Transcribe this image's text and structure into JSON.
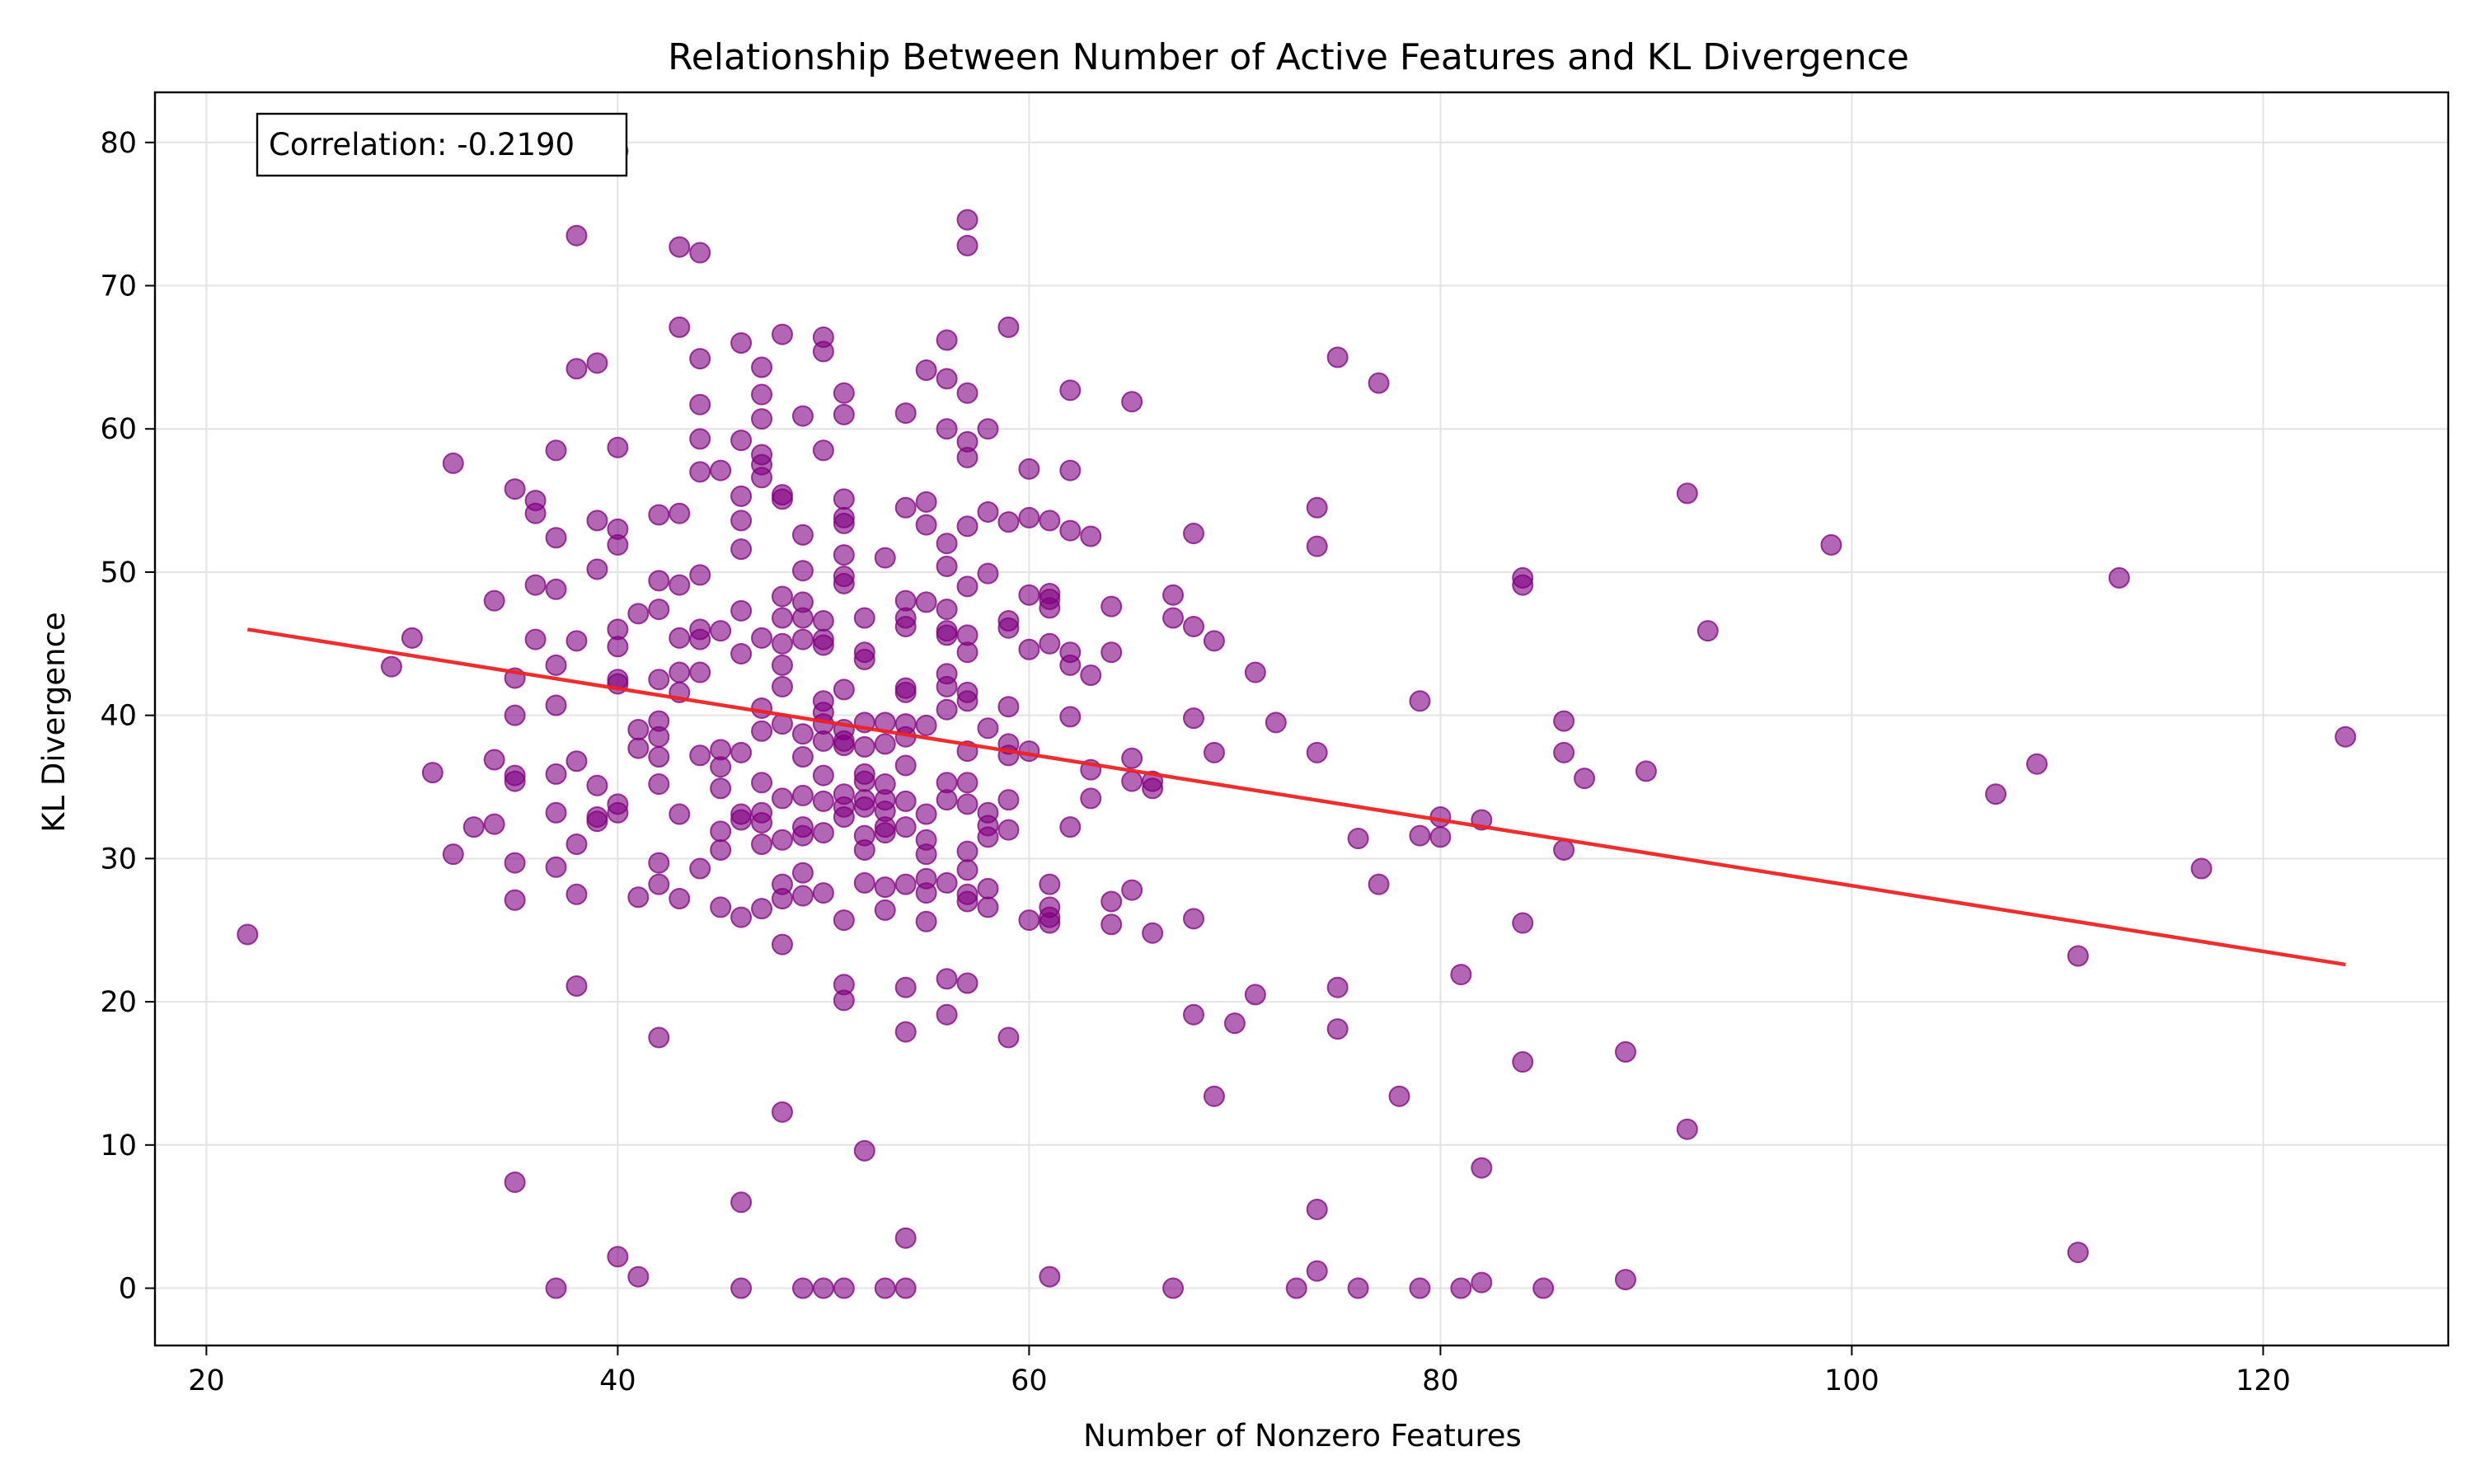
{
  "chart_data": {
    "type": "scatter",
    "title": "Relationship Between Number of Active Features and KL Divergence",
    "xlabel": "Number of Nonzero Features",
    "ylabel": "KL Divergence",
    "xlim": [
      17.5,
      129
    ],
    "ylim": [
      -4,
      83.5
    ],
    "xticks": [
      20,
      40,
      60,
      80,
      100,
      120
    ],
    "yticks": [
      0,
      10,
      20,
      30,
      40,
      50,
      60,
      70,
      80
    ],
    "grid": true,
    "annotation": "Correlation: -0.2190",
    "point_color": "#800080",
    "trend_color": "#ee2222",
    "trendline": {
      "x": [
        22,
        124
      ],
      "y": [
        46.0,
        22.6
      ]
    },
    "points": [
      [
        22,
        24.7
      ],
      [
        29,
        43.4
      ],
      [
        30,
        45.4
      ],
      [
        31,
        36.0
      ],
      [
        32,
        57.6
      ],
      [
        32,
        30.3
      ],
      [
        33,
        32.2
      ],
      [
        34,
        48.0
      ],
      [
        34,
        36.9
      ],
      [
        34,
        32.4
      ],
      [
        35,
        55.8
      ],
      [
        35,
        42.6
      ],
      [
        35,
        40.0
      ],
      [
        35,
        35.8
      ],
      [
        35,
        35.4
      ],
      [
        35,
        29.7
      ],
      [
        35,
        27.1
      ],
      [
        35,
        7.4
      ],
      [
        36,
        55.0
      ],
      [
        36,
        54.1
      ],
      [
        36,
        49.1
      ],
      [
        36,
        45.3
      ],
      [
        37,
        58.5
      ],
      [
        37,
        52.4
      ],
      [
        37,
        48.8
      ],
      [
        37,
        43.5
      ],
      [
        37,
        40.7
      ],
      [
        37,
        35.9
      ],
      [
        37,
        33.2
      ],
      [
        37,
        29.4
      ],
      [
        37,
        0
      ],
      [
        38,
        73.5
      ],
      [
        38,
        64.2
      ],
      [
        38,
        45.2
      ],
      [
        38,
        36.8
      ],
      [
        38,
        31.0
      ],
      [
        38,
        27.5
      ],
      [
        38,
        21.1
      ],
      [
        39,
        64.6
      ],
      [
        39,
        53.6
      ],
      [
        39,
        50.2
      ],
      [
        39,
        35.1
      ],
      [
        39,
        32.9
      ],
      [
        39,
        32.6
      ],
      [
        40,
        79.4
      ],
      [
        40,
        58.7
      ],
      [
        40,
        53.0
      ],
      [
        40,
        51.9
      ],
      [
        40,
        46.0
      ],
      [
        40,
        44.8
      ],
      [
        40,
        42.5
      ],
      [
        40,
        42.2
      ],
      [
        40,
        33.8
      ],
      [
        40,
        33.2
      ],
      [
        40,
        2.2
      ],
      [
        41,
        47.1
      ],
      [
        41,
        39.0
      ],
      [
        41,
        37.7
      ],
      [
        41,
        27.3
      ],
      [
        41,
        0.8
      ],
      [
        42,
        54.0
      ],
      [
        42,
        49.4
      ],
      [
        42,
        47.4
      ],
      [
        42,
        42.5
      ],
      [
        42,
        39.6
      ],
      [
        42,
        38.5
      ],
      [
        42,
        37.1
      ],
      [
        42,
        35.2
      ],
      [
        42,
        29.7
      ],
      [
        42,
        28.2
      ],
      [
        42,
        17.5
      ],
      [
        43,
        72.7
      ],
      [
        43,
        67.1
      ],
      [
        43,
        54.1
      ],
      [
        43,
        49.1
      ],
      [
        43,
        45.4
      ],
      [
        43,
        43.0
      ],
      [
        43,
        41.6
      ],
      [
        43,
        33.1
      ],
      [
        43,
        27.2
      ],
      [
        44,
        72.3
      ],
      [
        44,
        64.9
      ],
      [
        44,
        61.7
      ],
      [
        44,
        59.3
      ],
      [
        44,
        57.0
      ],
      [
        44,
        49.8
      ],
      [
        44,
        46.0
      ],
      [
        44,
        45.3
      ],
      [
        44,
        43.0
      ],
      [
        44,
        37.2
      ],
      [
        44,
        29.3
      ],
      [
        45,
        57.1
      ],
      [
        45,
        45.9
      ],
      [
        45,
        37.6
      ],
      [
        45,
        36.4
      ],
      [
        45,
        34.9
      ],
      [
        45,
        31.9
      ],
      [
        45,
        30.6
      ],
      [
        45,
        26.6
      ],
      [
        46,
        66.0
      ],
      [
        46,
        59.2
      ],
      [
        46,
        55.3
      ],
      [
        46,
        53.6
      ],
      [
        46,
        51.6
      ],
      [
        46,
        47.3
      ],
      [
        46,
        44.3
      ],
      [
        46,
        37.4
      ],
      [
        46,
        33.1
      ],
      [
        46,
        32.7
      ],
      [
        46,
        25.9
      ],
      [
        46,
        6.0
      ],
      [
        46,
        0
      ],
      [
        47,
        64.3
      ],
      [
        47,
        62.4
      ],
      [
        47,
        60.7
      ],
      [
        47,
        58.2
      ],
      [
        47,
        57.5
      ],
      [
        47,
        56.6
      ],
      [
        47,
        45.4
      ],
      [
        47,
        40.5
      ],
      [
        47,
        38.9
      ],
      [
        47,
        35.3
      ],
      [
        47,
        33.2
      ],
      [
        47,
        32.5
      ],
      [
        47,
        31.0
      ],
      [
        47,
        26.5
      ],
      [
        48,
        66.6
      ],
      [
        48,
        55.4
      ],
      [
        48,
        55.1
      ],
      [
        48,
        48.3
      ],
      [
        48,
        46.8
      ],
      [
        48,
        45.0
      ],
      [
        48,
        43.5
      ],
      [
        48,
        42.0
      ],
      [
        48,
        39.4
      ],
      [
        48,
        34.2
      ],
      [
        48,
        31.3
      ],
      [
        48,
        28.2
      ],
      [
        48,
        27.2
      ],
      [
        48,
        24.0
      ],
      [
        48,
        12.3
      ],
      [
        49,
        60.9
      ],
      [
        49,
        52.6
      ],
      [
        49,
        50.1
      ],
      [
        49,
        47.9
      ],
      [
        49,
        46.8
      ],
      [
        49,
        45.3
      ],
      [
        49,
        38.7
      ],
      [
        49,
        37.1
      ],
      [
        49,
        34.4
      ],
      [
        49,
        32.2
      ],
      [
        49,
        31.6
      ],
      [
        49,
        29.0
      ],
      [
        49,
        27.4
      ],
      [
        49,
        0
      ],
      [
        50,
        66.4
      ],
      [
        50,
        65.4
      ],
      [
        50,
        58.5
      ],
      [
        50,
        46.6
      ],
      [
        50,
        45.3
      ],
      [
        50,
        44.9
      ],
      [
        50,
        41.0
      ],
      [
        50,
        40.2
      ],
      [
        50,
        39.4
      ],
      [
        50,
        38.2
      ],
      [
        50,
        35.8
      ],
      [
        50,
        34.0
      ],
      [
        50,
        31.8
      ],
      [
        50,
        27.6
      ],
      [
        50,
        0
      ],
      [
        51,
        62.5
      ],
      [
        51,
        61.0
      ],
      [
        51,
        55.1
      ],
      [
        51,
        53.8
      ],
      [
        51,
        53.4
      ],
      [
        51,
        51.2
      ],
      [
        51,
        49.7
      ],
      [
        51,
        49.2
      ],
      [
        51,
        41.8
      ],
      [
        51,
        39.0
      ],
      [
        51,
        38.2
      ],
      [
        51,
        37.9
      ],
      [
        51,
        34.5
      ],
      [
        51,
        33.6
      ],
      [
        51,
        32.9
      ],
      [
        51,
        25.7
      ],
      [
        51,
        21.2
      ],
      [
        51,
        20.1
      ],
      [
        51,
        0
      ],
      [
        52,
        46.8
      ],
      [
        52,
        44.4
      ],
      [
        52,
        43.9
      ],
      [
        52,
        39.5
      ],
      [
        52,
        37.8
      ],
      [
        52,
        35.9
      ],
      [
        52,
        35.4
      ],
      [
        52,
        34.1
      ],
      [
        52,
        33.6
      ],
      [
        52,
        31.6
      ],
      [
        52,
        30.6
      ],
      [
        52,
        28.3
      ],
      [
        52,
        9.6
      ],
      [
        53,
        51.0
      ],
      [
        53,
        39.5
      ],
      [
        53,
        38.0
      ],
      [
        53,
        35.2
      ],
      [
        53,
        34.1
      ],
      [
        53,
        33.3
      ],
      [
        53,
        32.2
      ],
      [
        53,
        31.8
      ],
      [
        53,
        28.0
      ],
      [
        53,
        26.4
      ],
      [
        53,
        0
      ],
      [
        54,
        61.1
      ],
      [
        54,
        54.5
      ],
      [
        54,
        48.0
      ],
      [
        54,
        46.8
      ],
      [
        54,
        46.2
      ],
      [
        54,
        41.9
      ],
      [
        54,
        41.6
      ],
      [
        54,
        39.4
      ],
      [
        54,
        38.5
      ],
      [
        54,
        36.5
      ],
      [
        54,
        34.0
      ],
      [
        54,
        32.2
      ],
      [
        54,
        28.2
      ],
      [
        54,
        21.0
      ],
      [
        54,
        17.9
      ],
      [
        54,
        3.5
      ],
      [
        54,
        0
      ],
      [
        55,
        64.1
      ],
      [
        55,
        54.9
      ],
      [
        55,
        53.3
      ],
      [
        55,
        47.9
      ],
      [
        55,
        39.3
      ],
      [
        55,
        33.1
      ],
      [
        55,
        31.3
      ],
      [
        55,
        30.3
      ],
      [
        55,
        28.6
      ],
      [
        55,
        27.6
      ],
      [
        55,
        25.6
      ],
      [
        56,
        66.2
      ],
      [
        56,
        63.5
      ],
      [
        56,
        60.0
      ],
      [
        56,
        52.0
      ],
      [
        56,
        50.4
      ],
      [
        56,
        47.4
      ],
      [
        56,
        45.9
      ],
      [
        56,
        45.6
      ],
      [
        56,
        42.9
      ],
      [
        56,
        42.0
      ],
      [
        56,
        40.4
      ],
      [
        56,
        35.3
      ],
      [
        56,
        34.1
      ],
      [
        56,
        28.3
      ],
      [
        56,
        21.6
      ],
      [
        56,
        19.1
      ],
      [
        57,
        74.6
      ],
      [
        57,
        72.8
      ],
      [
        57,
        62.5
      ],
      [
        57,
        59.1
      ],
      [
        57,
        58.0
      ],
      [
        57,
        53.2
      ],
      [
        57,
        49.0
      ],
      [
        57,
        45.6
      ],
      [
        57,
        44.4
      ],
      [
        57,
        41.6
      ],
      [
        57,
        41.0
      ],
      [
        57,
        37.5
      ],
      [
        57,
        35.3
      ],
      [
        57,
        33.8
      ],
      [
        57,
        30.5
      ],
      [
        57,
        29.2
      ],
      [
        57,
        27.5
      ],
      [
        57,
        27.0
      ],
      [
        57,
        21.3
      ],
      [
        58,
        60.0
      ],
      [
        58,
        54.2
      ],
      [
        58,
        49.9
      ],
      [
        58,
        39.1
      ],
      [
        58,
        33.2
      ],
      [
        58,
        32.3
      ],
      [
        58,
        31.5
      ],
      [
        58,
        27.9
      ],
      [
        58,
        26.6
      ],
      [
        59,
        67.1
      ],
      [
        59,
        53.5
      ],
      [
        59,
        46.6
      ],
      [
        59,
        46.1
      ],
      [
        59,
        40.6
      ],
      [
        59,
        38.0
      ],
      [
        59,
        37.2
      ],
      [
        59,
        34.1
      ],
      [
        59,
        32.0
      ],
      [
        59,
        17.5
      ],
      [
        60,
        57.2
      ],
      [
        60,
        53.8
      ],
      [
        60,
        48.4
      ],
      [
        60,
        44.6
      ],
      [
        60,
        37.5
      ],
      [
        60,
        25.7
      ],
      [
        61,
        53.6
      ],
      [
        61,
        48.5
      ],
      [
        61,
        48.1
      ],
      [
        61,
        47.5
      ],
      [
        61,
        45.0
      ],
      [
        61,
        28.2
      ],
      [
        61,
        26.6
      ],
      [
        61,
        25.9
      ],
      [
        61,
        25.5
      ],
      [
        61,
        0.8
      ],
      [
        62,
        62.7
      ],
      [
        62,
        57.1
      ],
      [
        62,
        52.9
      ],
      [
        62,
        44.4
      ],
      [
        62,
        43.5
      ],
      [
        62,
        39.9
      ],
      [
        62,
        32.2
      ],
      [
        63,
        52.5
      ],
      [
        63,
        42.8
      ],
      [
        63,
        36.2
      ],
      [
        63,
        34.2
      ],
      [
        64,
        47.6
      ],
      [
        64,
        44.4
      ],
      [
        64,
        27.0
      ],
      [
        64,
        25.4
      ],
      [
        65,
        61.9
      ],
      [
        65,
        37.0
      ],
      [
        65,
        35.4
      ],
      [
        65,
        27.8
      ],
      [
        66,
        35.4
      ],
      [
        66,
        34.9
      ],
      [
        66,
        24.8
      ],
      [
        67,
        48.4
      ],
      [
        67,
        46.8
      ],
      [
        67,
        0
      ],
      [
        68,
        52.7
      ],
      [
        68,
        46.2
      ],
      [
        68,
        39.8
      ],
      [
        68,
        25.8
      ],
      [
        68,
        19.1
      ],
      [
        69,
        45.2
      ],
      [
        69,
        37.4
      ],
      [
        69,
        13.4
      ],
      [
        70,
        18.5
      ],
      [
        71,
        43.0
      ],
      [
        71,
        20.5
      ],
      [
        72,
        39.5
      ],
      [
        73,
        0
      ],
      [
        74,
        54.5
      ],
      [
        74,
        51.8
      ],
      [
        74,
        37.4
      ],
      [
        74,
        5.5
      ],
      [
        74,
        1.2
      ],
      [
        75,
        65.0
      ],
      [
        75,
        21.0
      ],
      [
        75,
        18.1
      ],
      [
        76,
        31.4
      ],
      [
        76,
        0
      ],
      [
        77,
        63.2
      ],
      [
        77,
        28.2
      ],
      [
        78,
        13.4
      ],
      [
        79,
        41.0
      ],
      [
        79,
        31.6
      ],
      [
        79,
        0
      ],
      [
        80,
        32.9
      ],
      [
        80,
        31.5
      ],
      [
        81,
        21.9
      ],
      [
        81,
        0
      ],
      [
        82,
        32.7
      ],
      [
        82,
        8.4
      ],
      [
        82,
        0.4
      ],
      [
        84,
        49.6
      ],
      [
        84,
        49.1
      ],
      [
        84,
        25.5
      ],
      [
        84,
        15.8
      ],
      [
        85,
        0
      ],
      [
        86,
        39.6
      ],
      [
        86,
        37.4
      ],
      [
        86,
        30.6
      ],
      [
        87,
        35.6
      ],
      [
        89,
        16.5
      ],
      [
        89,
        0.6
      ],
      [
        90,
        36.1
      ],
      [
        92,
        55.5
      ],
      [
        92,
        11.1
      ],
      [
        93,
        45.9
      ],
      [
        99,
        51.9
      ],
      [
        107,
        34.5
      ],
      [
        109,
        36.6
      ],
      [
        111,
        23.2
      ],
      [
        111,
        2.5
      ],
      [
        113,
        49.6
      ],
      [
        117,
        29.3
      ],
      [
        124,
        38.5
      ]
    ]
  }
}
